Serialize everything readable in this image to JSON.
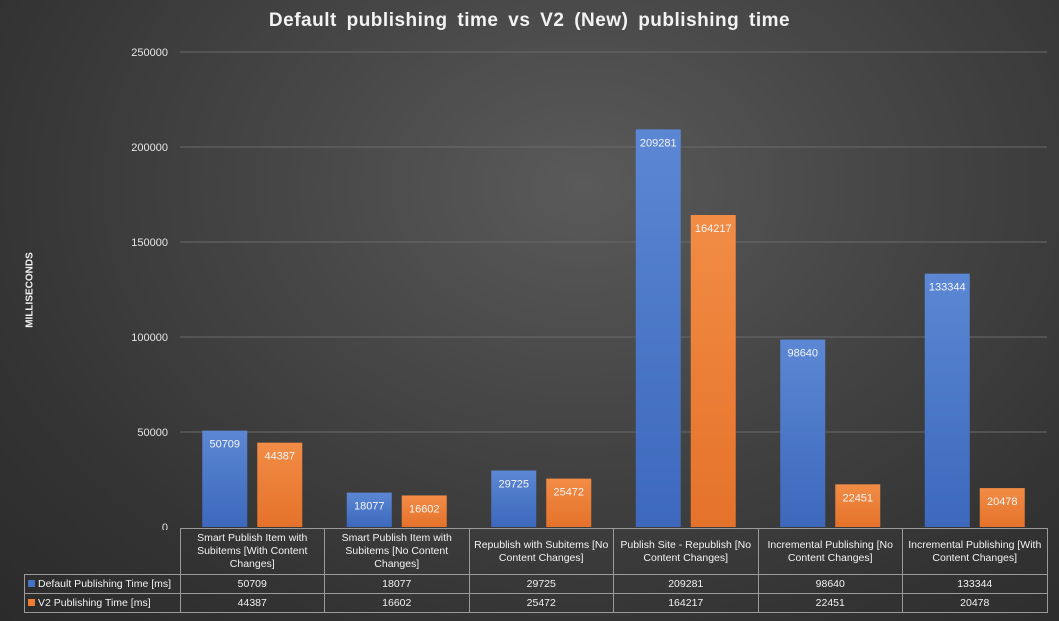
{
  "chart_data": {
    "type": "bar",
    "title": "Default publishing time vs V2 (New) publishing time",
    "ylabel": "MILLISECONDS",
    "xlabel": "",
    "ylim": [
      0,
      250000
    ],
    "yticks": [
      "0",
      "50000",
      "100000",
      "150000",
      "200000",
      "250000"
    ],
    "grid": true,
    "legend": "data-table",
    "categories": [
      "Smart Publish Item with Subitems [With Content Changes]",
      "Smart Publish Item with Subitems [No Content Changes]",
      "Republish with Subitems [No Content Changes]",
      "Publish Site - Republish [No Content Changes]",
      "Incremental Publishing [No Content Changes]",
      "Incremental Publishing [With Content Changes]"
    ],
    "series": [
      {
        "name": "Default Publishing Time [ms]",
        "color": "#4472c4",
        "values": [
          50709,
          18077,
          29725,
          209281,
          98640,
          133344
        ]
      },
      {
        "name": "V2 Publishing Time [ms]",
        "color": "#ed7d31",
        "values": [
          44387,
          16602,
          25472,
          164217,
          22451,
          20478
        ]
      }
    ]
  }
}
